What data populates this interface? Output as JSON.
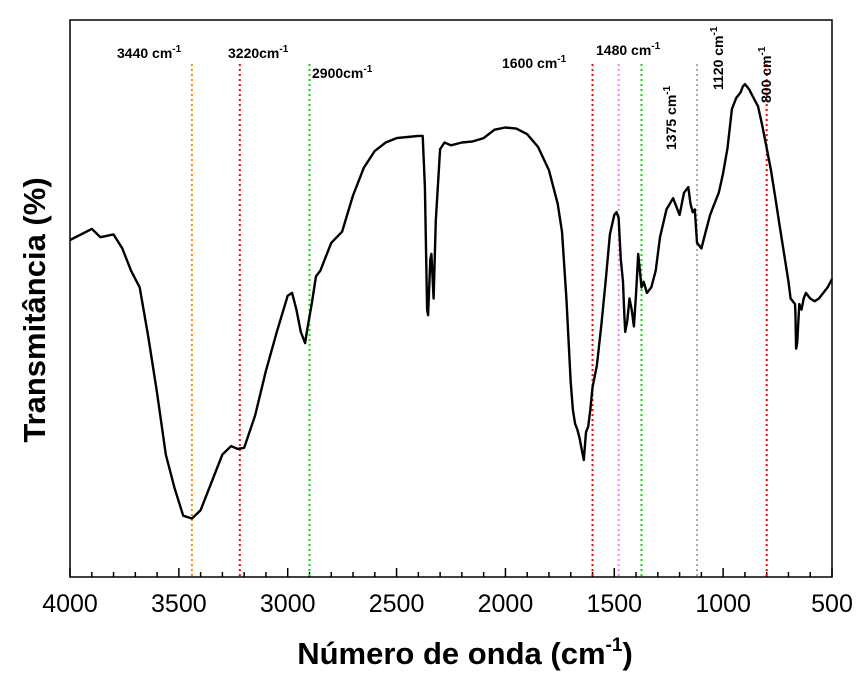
{
  "chart_data": {
    "type": "line",
    "title": "",
    "xlabel": "Número de onda (cm",
    "xlabel_sup": "-1",
    "xlabel_suffix": ")",
    "ylabel": "Transmitância (%)",
    "xlim": [
      4000,
      500
    ],
    "x_reversed": true,
    "ylim": [
      0,
      100
    ],
    "y_ticks_labeled": false,
    "grid": false,
    "x_ticks": [
      4000,
      3500,
      3000,
      2500,
      2000,
      1500,
      1000,
      500
    ],
    "x_tick_labels": [
      "4000",
      "3500",
      "3000",
      "2500",
      "2000",
      "1500",
      "1000",
      "500"
    ],
    "series": [
      {
        "color": "#000000",
        "x": [
          4000,
          3900,
          3860,
          3800,
          3760,
          3720,
          3680,
          3640,
          3600,
          3560,
          3520,
          3480,
          3440,
          3400,
          3350,
          3300,
          3260,
          3230,
          3200,
          3150,
          3100,
          3050,
          3000,
          2980,
          2960,
          2940,
          2920,
          2910,
          2890,
          2870,
          2850,
          2820,
          2800,
          2750,
          2700,
          2650,
          2600,
          2550,
          2500,
          2450,
          2400,
          2380,
          2370,
          2360,
          2355,
          2345,
          2340,
          2330,
          2320,
          2300,
          2280,
          2250,
          2200,
          2150,
          2100,
          2050,
          2000,
          1950,
          1900,
          1850,
          1800,
          1760,
          1740,
          1720,
          1700,
          1690,
          1680,
          1670,
          1660,
          1650,
          1640,
          1630,
          1620,
          1610,
          1600,
          1580,
          1560,
          1540,
          1520,
          1500,
          1490,
          1480,
          1470,
          1460,
          1455,
          1450,
          1440,
          1430,
          1420,
          1410,
          1400,
          1390,
          1380,
          1375,
          1365,
          1350,
          1330,
          1310,
          1290,
          1260,
          1230,
          1200,
          1180,
          1160,
          1150,
          1140,
          1130,
          1120,
          1100,
          1080,
          1060,
          1040,
          1020,
          1000,
          980,
          960,
          940,
          920,
          910,
          900,
          890,
          880,
          860,
          840,
          820,
          800,
          780,
          760,
          740,
          720,
          700,
          690,
          680,
          670,
          668,
          665,
          660,
          650,
          640,
          630,
          620,
          600,
          580,
          560,
          540,
          520,
          500
        ],
        "y": [
          60.5,
          62.5,
          61,
          61.5,
          59,
          55,
          52,
          43,
          33,
          22,
          16,
          11,
          10.5,
          12,
          17,
          22,
          23.5,
          23,
          23.2,
          29,
          37,
          44,
          50.5,
          51,
          48,
          44,
          42,
          44.5,
          49,
          54,
          55,
          58,
          60,
          62,
          68.5,
          73.5,
          76.5,
          78,
          78.8,
          79,
          79.2,
          79.2,
          70,
          48,
          47,
          57,
          58,
          50,
          64,
          76.8,
          78,
          77.5,
          78,
          78.2,
          78.8,
          80.3,
          80.7,
          80.5,
          79.5,
          77.2,
          73,
          67,
          62,
          50,
          35,
          30,
          27.5,
          26.5,
          25,
          23,
          21,
          26,
          27,
          30,
          34,
          38,
          45,
          53,
          61.5,
          65,
          65.5,
          64.5,
          57,
          53,
          48,
          44,
          46,
          50,
          48,
          45,
          51,
          58,
          54,
          52,
          53,
          51,
          52,
          55,
          61,
          66,
          68,
          65,
          69,
          70,
          67,
          65.5,
          66,
          60,
          59,
          62,
          65,
          67,
          69,
          72.5,
          77,
          84,
          86,
          87,
          88,
          88.5,
          88,
          87.5,
          86,
          84.5,
          81,
          77,
          73,
          68,
          63,
          58,
          53,
          50,
          49.5,
          49,
          47.5,
          41,
          42,
          49,
          48,
          50,
          51,
          50,
          49.5,
          50,
          51,
          52,
          53.5
        ]
      }
    ],
    "annotations": [
      {
        "x": 3440,
        "color": "#ff8c00",
        "label": "3440 cm",
        "sup": "-1"
      },
      {
        "x": 3220,
        "color": "#ff0000",
        "label": "3220cm",
        "sup": "-1"
      },
      {
        "x": 2900,
        "color": "#00dd00",
        "label": "2900cm",
        "sup": "-1"
      },
      {
        "x": 1600,
        "color": "#ff0000",
        "label": "1600 cm",
        "sup": "-1"
      },
      {
        "x": 1480,
        "color": "#ee82ee",
        "label": "1480 cm",
        "sup": "-1"
      },
      {
        "x": 1375,
        "color": "#00dd00",
        "label": "1375 cm",
        "sup": "-1",
        "rotated": true
      },
      {
        "x": 1120,
        "color": "#aaaaaa",
        "label": "1120 cm",
        "sup": "-1",
        "rotated": true
      },
      {
        "x": 800,
        "color": "#ff0000",
        "label": "800 cm",
        "sup": "-1",
        "rotated": true
      }
    ]
  }
}
